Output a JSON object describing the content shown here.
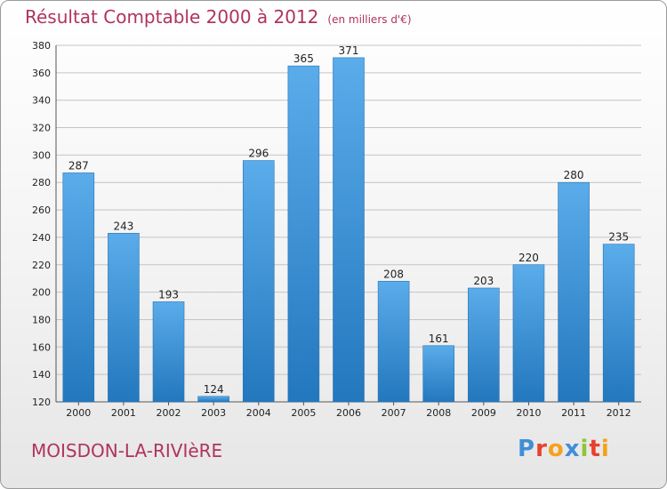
{
  "header": {
    "title": "Résultat Comptable 2000 à 2012",
    "unit": "(en milliers d'€)"
  },
  "footer": {
    "commune": "MOISDON-LA-RIVIèRE",
    "logo_letters": [
      "P",
      "r",
      "o",
      "x",
      "i",
      "t",
      "i"
    ],
    "logo_colors": [
      "#3f8fd8",
      "#e8412d",
      "#f5a11c",
      "#3f8fd8",
      "#8fc43e",
      "#e8412d",
      "#f5a11c"
    ]
  },
  "colors": {
    "title": "#b0345a",
    "bar_top": "#5aacea",
    "bar_bottom": "#2377bd"
  },
  "chart_data": {
    "type": "bar",
    "title": "Résultat Comptable 2000 à 2012",
    "xlabel": "",
    "ylabel": "",
    "categories": [
      "2000",
      "2001",
      "2002",
      "2003",
      "2004",
      "2005",
      "2006",
      "2007",
      "2008",
      "2009",
      "2010",
      "2011",
      "2012"
    ],
    "values": [
      287,
      243,
      193,
      124,
      296,
      365,
      371,
      208,
      161,
      203,
      220,
      280,
      235
    ],
    "ylim": [
      120,
      380
    ],
    "yticks": [
      120,
      140,
      160,
      180,
      200,
      220,
      240,
      260,
      280,
      300,
      320,
      340,
      360,
      380
    ],
    "grid": true,
    "legend": "none"
  }
}
